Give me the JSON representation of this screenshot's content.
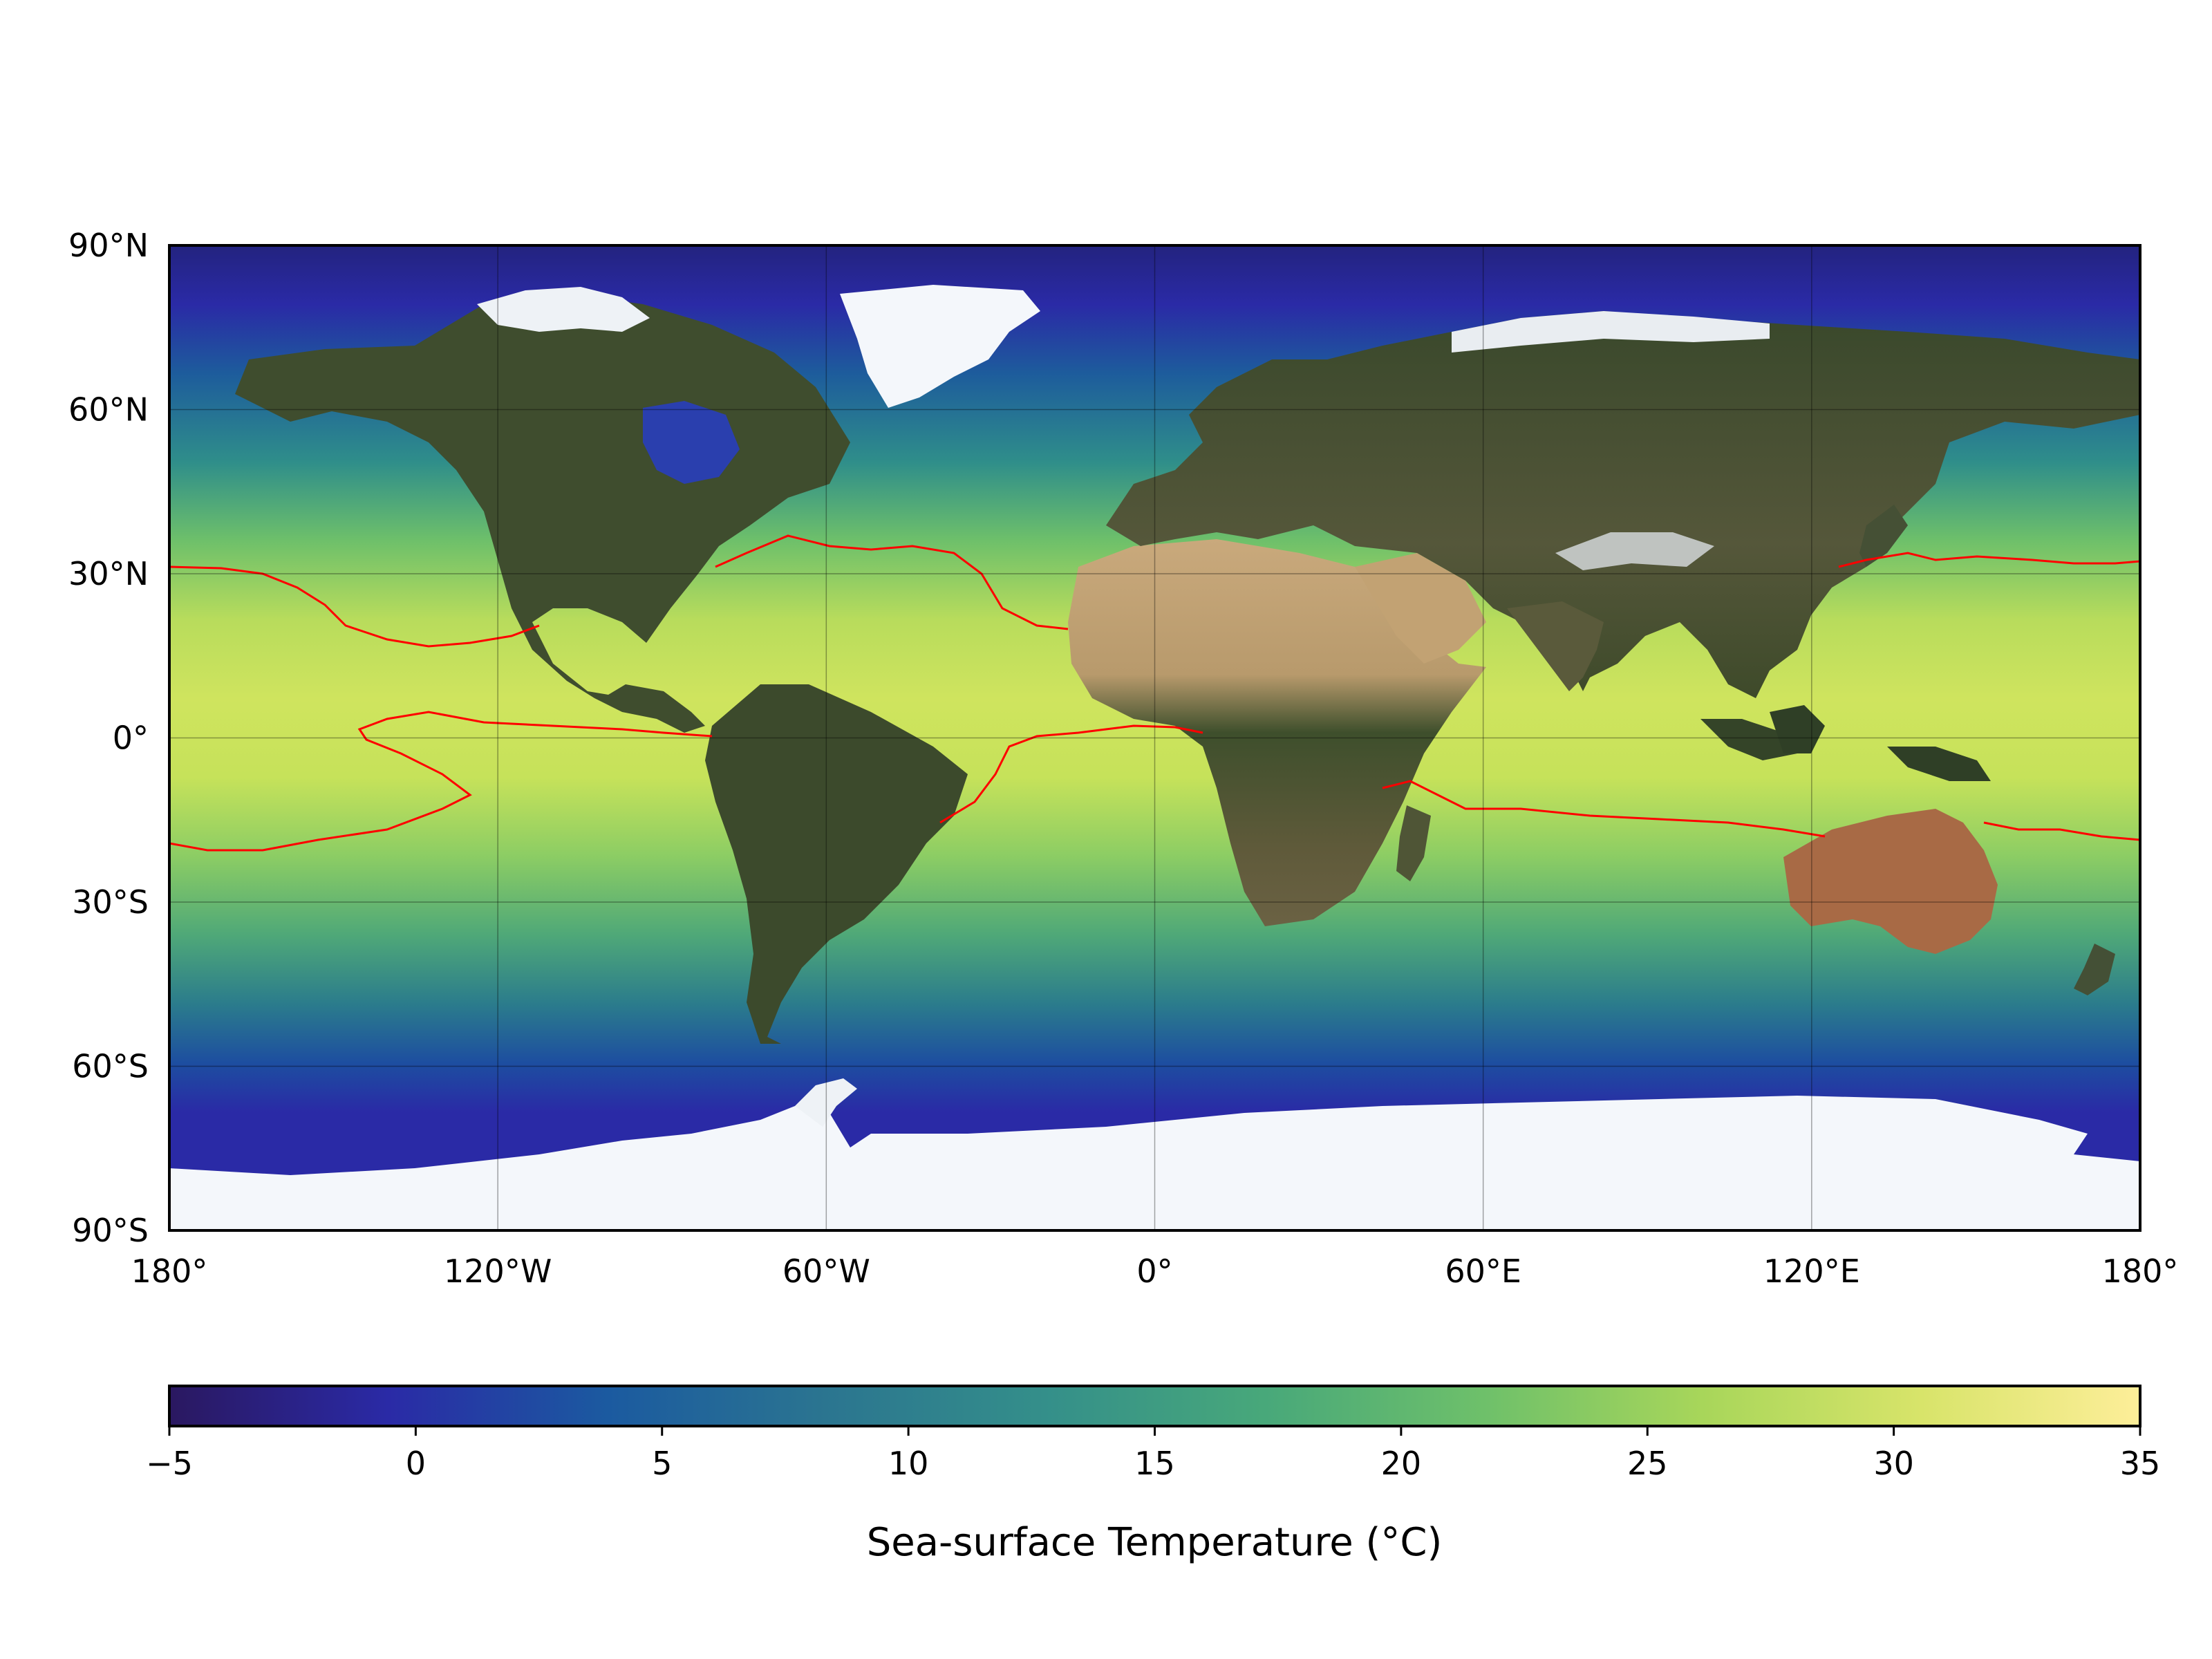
{
  "map": {
    "projection": "equirectangular",
    "extent": {
      "lon": [
        -180,
        180
      ],
      "lat": [
        -90,
        90
      ]
    },
    "gridlines": true,
    "gridline_lons": [
      -120,
      -60,
      0,
      60,
      120
    ],
    "gridline_lats": [
      -60,
      -30,
      0,
      30,
      60
    ],
    "x_ticks": [
      {
        "lon": -180,
        "label": "180°"
      },
      {
        "lon": -120,
        "label": "120°W"
      },
      {
        "lon": -60,
        "label": "60°W"
      },
      {
        "lon": 0,
        "label": "0°"
      },
      {
        "lon": 60,
        "label": "60°E"
      },
      {
        "lon": 120,
        "label": "120°E"
      },
      {
        "lon": 180,
        "label": "180°"
      }
    ],
    "y_ticks": [
      {
        "lat": 90,
        "label": "90°N"
      },
      {
        "lat": 60,
        "label": "60°N"
      },
      {
        "lat": 30,
        "label": "30°N"
      },
      {
        "lat": 0,
        "label": "0°"
      },
      {
        "lat": -30,
        "label": "30°S"
      },
      {
        "lat": -60,
        "label": "60°S"
      },
      {
        "lat": -90,
        "label": "90°S"
      }
    ],
    "land_layer": "satellite imagery (blue marble)",
    "ocean_layer": "sea-surface temperature field",
    "contour": {
      "color": "#ff0000",
      "level_c": 28,
      "description": "28°C isotherm"
    },
    "colors": {
      "ocean_cold": "#2a2aa6",
      "ocean_mid": "#2f8e8a",
      "ocean_warm": "#c6e25a",
      "land_dark": "#3c4a2c",
      "land_desert": "#c8a77a",
      "ice": "#f4f7fb"
    }
  },
  "colorbar": {
    "label": "Sea-surface Temperature (°C)",
    "min": -5,
    "max": 35,
    "ticks": [
      {
        "value": -5,
        "label": "−5"
      },
      {
        "value": 0,
        "label": "0"
      },
      {
        "value": 5,
        "label": "5"
      },
      {
        "value": 10,
        "label": "10"
      },
      {
        "value": 15,
        "label": "15"
      },
      {
        "value": 20,
        "label": "20"
      },
      {
        "value": 25,
        "label": "25"
      },
      {
        "value": 30,
        "label": "30"
      },
      {
        "value": 35,
        "label": "35"
      }
    ],
    "colormap": "haline",
    "stops": [
      "#2a1860",
      "#2a2aa6",
      "#1b5aa0",
      "#2b7590",
      "#348f8a",
      "#48a87a",
      "#6ec06a",
      "#a8d65a",
      "#d8e46a",
      "#fdee99"
    ]
  }
}
